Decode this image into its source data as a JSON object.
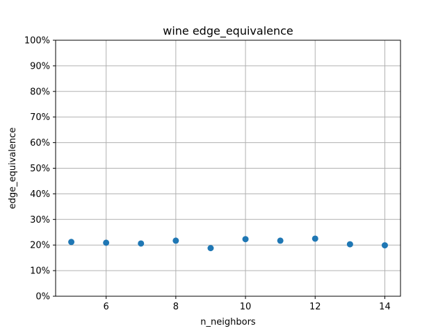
{
  "chart_data": {
    "type": "scatter",
    "title": "wine edge_equivalence",
    "xlabel": "n_neighbors",
    "ylabel": "edge_equivalence",
    "x": [
      5,
      6,
      7,
      8,
      9,
      10,
      11,
      12,
      13,
      14
    ],
    "y": [
      0.212,
      0.209,
      0.206,
      0.217,
      0.188,
      0.223,
      0.217,
      0.225,
      0.203,
      0.199
    ],
    "xlim": [
      4.55,
      14.45
    ],
    "ylim": [
      0,
      1
    ],
    "xticks": [
      6,
      8,
      10,
      12,
      14
    ],
    "xtick_labels": [
      "6",
      "8",
      "10",
      "12",
      "14"
    ],
    "yticks": [
      0,
      0.1,
      0.2,
      0.3,
      0.4,
      0.5,
      0.6,
      0.7,
      0.8,
      0.9,
      1.0
    ],
    "ytick_labels": [
      "0%",
      "10%",
      "20%",
      "30%",
      "40%",
      "50%",
      "60%",
      "70%",
      "80%",
      "90%",
      "100%"
    ],
    "grid": true,
    "marker_color": "#1f77b4"
  }
}
